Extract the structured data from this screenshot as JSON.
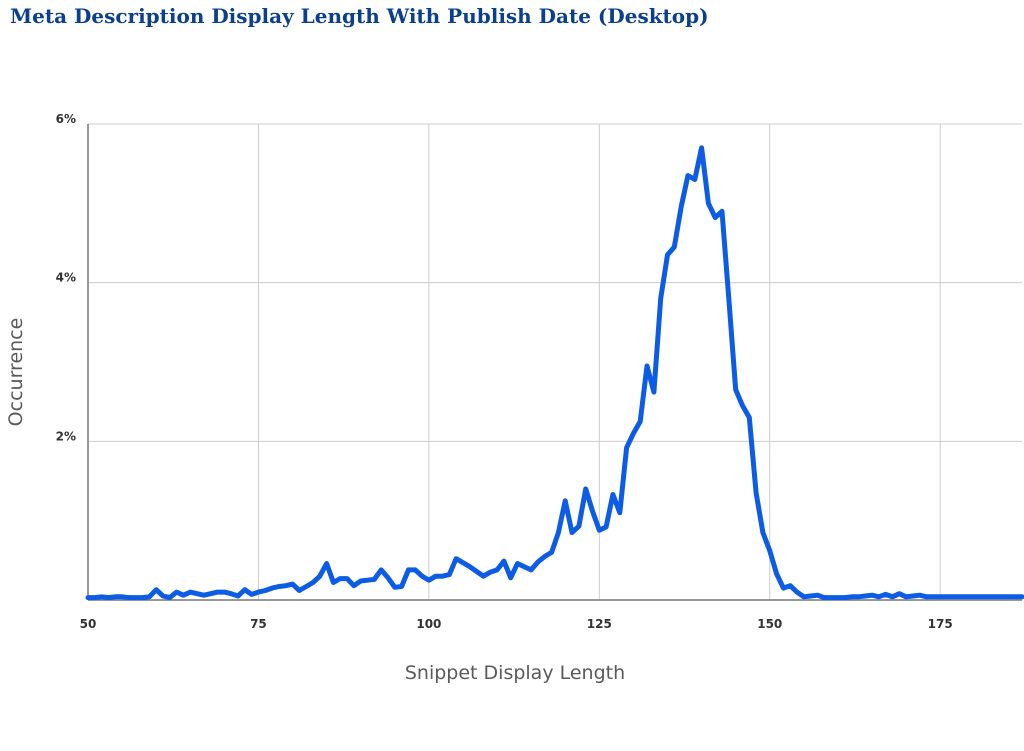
{
  "chart_data": {
    "type": "line",
    "title": "Meta Description Display Length With Publish Date (Desktop)",
    "xlabel": "Snippet Display Length",
    "ylabel": "Occurrence",
    "xlim": [
      50,
      187
    ],
    "ylim": [
      0,
      6
    ],
    "x_ticks": [
      50,
      75,
      100,
      125,
      150,
      175
    ],
    "x_tick_labels": [
      "50",
      "75",
      "100",
      "125",
      "150",
      "175"
    ],
    "y_ticks": [
      2,
      4,
      6
    ],
    "y_tick_labels": [
      "2%",
      "4%",
      "6%"
    ],
    "grid": true,
    "legend": "none",
    "line_color": "#0d5ce6",
    "grid_color": "#cccccc",
    "series": [
      {
        "x": [
          50,
          51,
          52,
          53,
          54,
          55,
          56,
          57,
          58,
          59,
          60,
          61,
          62,
          63,
          64,
          65,
          66,
          67,
          68,
          69,
          70,
          71,
          72,
          73,
          74,
          75,
          76,
          77,
          78,
          79,
          80,
          81,
          82,
          83,
          84,
          85,
          86,
          87,
          88,
          89,
          90,
          91,
          92,
          93,
          94,
          95,
          96,
          97,
          98,
          99,
          100,
          101,
          102,
          103,
          104,
          105,
          106,
          107,
          108,
          109,
          110,
          111,
          112,
          113,
          114,
          115,
          116,
          117,
          118,
          119,
          120,
          121,
          122,
          123,
          124,
          125,
          126,
          127,
          128,
          129,
          130,
          131,
          132,
          133,
          134,
          135,
          136,
          137,
          138,
          139,
          140,
          141,
          142,
          143,
          144,
          145,
          146,
          147,
          148,
          149,
          150,
          151,
          152,
          153,
          154,
          155,
          156,
          157,
          158,
          159,
          160,
          161,
          162,
          163,
          164,
          165,
          166,
          167,
          168,
          169,
          170,
          171,
          172,
          173,
          174,
          175,
          176,
          177,
          178,
          179,
          180,
          181,
          182,
          183,
          184,
          185,
          186,
          187
        ],
        "y": [
          0.03,
          0.03,
          0.04,
          0.03,
          0.04,
          0.04,
          0.03,
          0.03,
          0.03,
          0.04,
          0.13,
          0.05,
          0.03,
          0.1,
          0.06,
          0.1,
          0.08,
          0.06,
          0.08,
          0.1,
          0.1,
          0.08,
          0.05,
          0.13,
          0.07,
          0.1,
          0.12,
          0.15,
          0.17,
          0.18,
          0.2,
          0.12,
          0.17,
          0.22,
          0.3,
          0.46,
          0.22,
          0.27,
          0.27,
          0.18,
          0.24,
          0.25,
          0.26,
          0.38,
          0.28,
          0.16,
          0.17,
          0.38,
          0.38,
          0.3,
          0.25,
          0.3,
          0.3,
          0.32,
          0.52,
          0.47,
          0.42,
          0.36,
          0.3,
          0.35,
          0.38,
          0.49,
          0.28,
          0.46,
          0.42,
          0.38,
          0.48,
          0.55,
          0.6,
          0.85,
          1.25,
          0.85,
          0.93,
          1.4,
          1.12,
          0.88,
          0.92,
          1.33,
          1.1,
          1.92,
          2.1,
          2.25,
          2.95,
          2.62,
          3.8,
          4.35,
          4.45,
          4.95,
          5.35,
          5.3,
          5.7,
          5.0,
          4.82,
          4.9,
          3.8,
          2.65,
          2.45,
          2.3,
          1.35,
          0.85,
          0.62,
          0.33,
          0.15,
          0.18,
          0.1,
          0.04,
          0.05,
          0.06,
          0.03,
          0.03,
          0.03,
          0.03,
          0.04,
          0.04,
          0.05,
          0.06,
          0.04,
          0.07,
          0.04,
          0.08,
          0.04,
          0.05,
          0.06,
          0.04,
          0.04,
          0.04,
          0.04,
          0.04,
          0.04,
          0.04,
          0.04,
          0.04,
          0.04,
          0.04,
          0.04,
          0.04,
          0.04,
          0.04
        ]
      }
    ]
  }
}
